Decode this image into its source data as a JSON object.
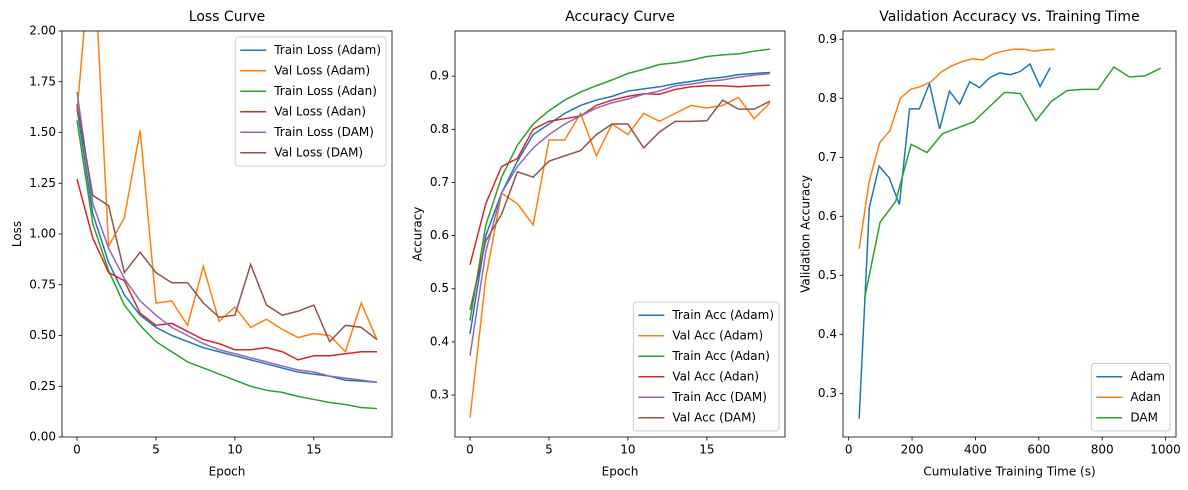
{
  "chart_data": [
    {
      "type": "line",
      "title": "Loss Curve",
      "x_label": "Epoch",
      "y_label": "Loss",
      "x": [
        0,
        1,
        2,
        3,
        4,
        5,
        6,
        7,
        8,
        9,
        10,
        11,
        12,
        13,
        14,
        15,
        16,
        17,
        18,
        19
      ],
      "xlim": [
        -0.95,
        19.95
      ],
      "xticks": [
        0,
        5,
        10,
        15
      ],
      "ylim": [
        0,
        2.0
      ],
      "yticks": [
        {
          "value": 0,
          "label": "0.00"
        },
        {
          "value": 0.25,
          "label": "0.25"
        },
        {
          "value": 0.5,
          "label": "0.50"
        },
        {
          "value": 0.75,
          "label": "0.75"
        },
        {
          "value": 1.0,
          "label": "1.00"
        },
        {
          "value": 1.25,
          "label": "1.25"
        },
        {
          "value": 1.5,
          "label": "1.50"
        },
        {
          "value": 1.75,
          "label": "1.75"
        },
        {
          "value": 2.0,
          "label": "2.00"
        }
      ],
      "legend": "upper right",
      "series": [
        {
          "name": "Train Loss (Adam)",
          "color": "#1f77b4",
          "values": [
            1.62,
            1.1,
            0.86,
            0.7,
            0.6,
            0.54,
            0.5,
            0.47,
            0.44,
            0.42,
            0.4,
            0.38,
            0.36,
            0.34,
            0.32,
            0.31,
            0.3,
            0.28,
            0.275,
            0.27
          ]
        },
        {
          "name": "Val Loss (Adam)",
          "color": "#ff7f0e",
          "values": [
            1.6,
            2.5,
            0.94,
            1.08,
            1.51,
            0.66,
            0.67,
            0.55,
            0.84,
            0.57,
            0.64,
            0.54,
            0.58,
            0.53,
            0.49,
            0.51,
            0.5,
            0.42,
            0.66,
            0.48
          ]
        },
        {
          "name": "Train Loss (Adan)",
          "color": "#2ca02c",
          "values": [
            1.56,
            1.05,
            0.82,
            0.65,
            0.55,
            0.47,
            0.42,
            0.37,
            0.34,
            0.31,
            0.28,
            0.25,
            0.23,
            0.22,
            0.2,
            0.185,
            0.17,
            0.16,
            0.145,
            0.14
          ]
        },
        {
          "name": "Val Loss (Adan)",
          "color": "#d62728",
          "values": [
            1.27,
            0.98,
            0.81,
            0.77,
            0.61,
            0.55,
            0.56,
            0.52,
            0.48,
            0.46,
            0.43,
            0.43,
            0.44,
            0.42,
            0.38,
            0.4,
            0.4,
            0.41,
            0.42,
            0.42
          ]
        },
        {
          "name": "Train Loss (DAM)",
          "color": "#9467bd",
          "values": [
            1.7,
            1.15,
            0.93,
            0.78,
            0.67,
            0.6,
            0.54,
            0.5,
            0.46,
            0.43,
            0.41,
            0.39,
            0.37,
            0.35,
            0.33,
            0.32,
            0.3,
            0.29,
            0.28,
            0.27
          ]
        },
        {
          "name": "Val Loss (DAM)",
          "color": "#8c564b",
          "values": [
            1.64,
            1.19,
            1.14,
            0.81,
            0.91,
            0.81,
            0.76,
            0.76,
            0.66,
            0.59,
            0.6,
            0.85,
            0.65,
            0.6,
            0.62,
            0.65,
            0.47,
            0.55,
            0.54,
            0.48
          ]
        }
      ]
    },
    {
      "type": "line",
      "title": "Accuracy Curve",
      "x_label": "Epoch",
      "y_label": "Accuracy",
      "x": [
        0,
        1,
        2,
        3,
        4,
        5,
        6,
        7,
        8,
        9,
        10,
        11,
        12,
        13,
        14,
        15,
        16,
        17,
        18,
        19
      ],
      "xlim": [
        -0.95,
        19.95
      ],
      "xticks": [
        0,
        5,
        10,
        15
      ],
      "ylim": [
        0.221,
        0.985
      ],
      "yticks": [
        0.3,
        0.4,
        0.5,
        0.6,
        0.7,
        0.8,
        0.9
      ],
      "legend": "lower right",
      "series": [
        {
          "name": "Train Acc (Adam)",
          "color": "#1f77b4",
          "values": [
            0.415,
            0.6,
            0.68,
            0.74,
            0.79,
            0.81,
            0.83,
            0.845,
            0.855,
            0.862,
            0.872,
            0.876,
            0.88,
            0.886,
            0.89,
            0.895,
            0.898,
            0.903,
            0.905,
            0.907
          ]
        },
        {
          "name": "Val Acc (Adam)",
          "color": "#ff7f0e",
          "values": [
            0.257,
            0.52,
            0.68,
            0.66,
            0.62,
            0.78,
            0.78,
            0.83,
            0.75,
            0.81,
            0.79,
            0.83,
            0.815,
            0.83,
            0.845,
            0.84,
            0.845,
            0.86,
            0.82,
            0.85
          ]
        },
        {
          "name": "Train Acc (Adan)",
          "color": "#2ca02c",
          "values": [
            0.44,
            0.62,
            0.71,
            0.77,
            0.81,
            0.835,
            0.855,
            0.87,
            0.882,
            0.893,
            0.905,
            0.913,
            0.922,
            0.925,
            0.93,
            0.937,
            0.94,
            0.942,
            0.947,
            0.951
          ]
        },
        {
          "name": "Val Acc (Adan)",
          "color": "#d62728",
          "values": [
            0.545,
            0.66,
            0.73,
            0.745,
            0.8,
            0.815,
            0.82,
            0.825,
            0.845,
            0.855,
            0.862,
            0.867,
            0.866,
            0.875,
            0.88,
            0.882,
            0.882,
            0.88,
            0.882,
            0.883
          ]
        },
        {
          "name": "Train Acc (DAM)",
          "color": "#9467bd",
          "values": [
            0.374,
            0.57,
            0.68,
            0.73,
            0.765,
            0.79,
            0.81,
            0.825,
            0.84,
            0.85,
            0.857,
            0.866,
            0.872,
            0.882,
            0.885,
            0.89,
            0.893,
            0.898,
            0.902,
            0.905
          ]
        },
        {
          "name": "Val Acc (DAM)",
          "color": "#8c564b",
          "values": [
            0.46,
            0.59,
            0.64,
            0.72,
            0.71,
            0.74,
            0.75,
            0.76,
            0.79,
            0.81,
            0.81,
            0.765,
            0.795,
            0.815,
            0.815,
            0.816,
            0.855,
            0.838,
            0.838,
            0.853
          ]
        }
      ]
    },
    {
      "type": "line",
      "title": "Validation Accuracy vs. Training Time",
      "x_label": "Cumulative Training Time (s)",
      "y_label": "Validation Accuracy",
      "xlim": [
        -18,
        1033
      ],
      "xticks": [
        0,
        200,
        400,
        600,
        800,
        1000
      ],
      "ylim": [
        0.226,
        0.914
      ],
      "yticks": [
        0.3,
        0.4,
        0.5,
        0.6,
        0.7,
        0.8,
        0.9
      ],
      "legend": "lower right",
      "series": [
        {
          "name": "Adam",
          "color": "#1f77b4",
          "x": [
            33,
            65,
            96,
            128,
            160,
            192,
            223,
            255,
            287,
            318,
            350,
            382,
            413,
            445,
            477,
            509,
            540,
            572,
            604,
            636
          ],
          "values": [
            0.257,
            0.615,
            0.685,
            0.665,
            0.62,
            0.782,
            0.782,
            0.825,
            0.748,
            0.812,
            0.79,
            0.828,
            0.818,
            0.835,
            0.843,
            0.84,
            0.845,
            0.858,
            0.82,
            0.852
          ]
        },
        {
          "name": "Adan",
          "color": "#ff7f0e",
          "x": [
            33,
            65,
            98,
            130,
            163,
            195,
            228,
            260,
            293,
            325,
            358,
            390,
            423,
            455,
            488,
            520,
            553,
            585,
            618,
            650
          ],
          "values": [
            0.545,
            0.66,
            0.725,
            0.745,
            0.8,
            0.815,
            0.82,
            0.828,
            0.845,
            0.855,
            0.862,
            0.867,
            0.865,
            0.875,
            0.88,
            0.883,
            0.883,
            0.88,
            0.882,
            0.883
          ]
        },
        {
          "name": "DAM",
          "color": "#2ca02c",
          "x": [
            50,
            99,
            148,
            197,
            247,
            296,
            345,
            394,
            443,
            492,
            542,
            591,
            640,
            689,
            738,
            787,
            837,
            886,
            935,
            985
          ],
          "values": [
            0.46,
            0.59,
            0.625,
            0.722,
            0.708,
            0.74,
            0.75,
            0.76,
            0.785,
            0.81,
            0.808,
            0.762,
            0.795,
            0.813,
            0.815,
            0.815,
            0.853,
            0.836,
            0.838,
            0.851
          ]
        }
      ]
    }
  ]
}
